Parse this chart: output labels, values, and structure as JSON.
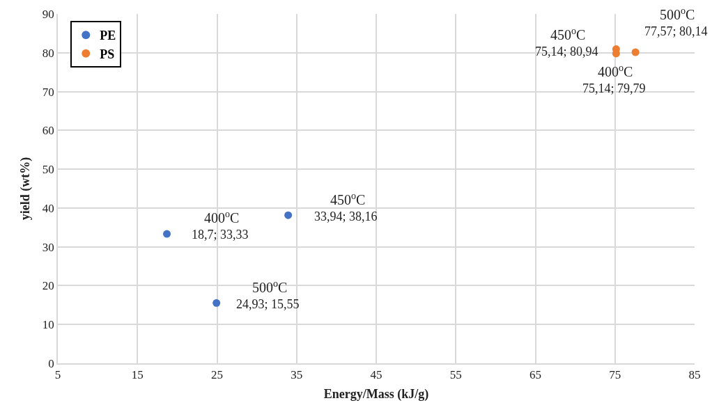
{
  "chart_data": {
    "type": "scatter",
    "xlabel": "Energy/Mass (kJ/g)",
    "ylabel": "yield (wt%)",
    "xlim": [
      5,
      85
    ],
    "xticks": [
      5,
      15,
      25,
      35,
      45,
      55,
      65,
      75,
      85
    ],
    "ylim": [
      0,
      90
    ],
    "yticks": [
      0,
      10,
      20,
      30,
      40,
      50,
      60,
      70,
      80,
      90
    ],
    "grid": true,
    "legend": "top left",
    "marker": "circle",
    "series": [
      {
        "name": "PE",
        "color": "#4472c4",
        "x": [
          18.7,
          33.94,
          24.93
        ],
        "values": [
          33.33,
          38.16,
          15.55
        ],
        "value_labels": [
          "18,7; 33,33",
          "33,94; 38,16",
          "24,93; 15,55"
        ]
      },
      {
        "name": "PS",
        "color": "#ed7d31",
        "x": [
          75.14,
          75.14,
          77.57
        ],
        "values": [
          80.94,
          79.79,
          80.14
        ],
        "value_labels": [
          "75,14; 80,94",
          "75,14; 79,79",
          "77,57; 80,14"
        ]
      }
    ],
    "annotations": [
      "400$^{o}$C",
      "450$^{o}$C",
      "500$^{o}$C",
      "450$^{o}$C",
      "400$^{o}$C",
      "500$^{o}$C"
    ]
  }
}
